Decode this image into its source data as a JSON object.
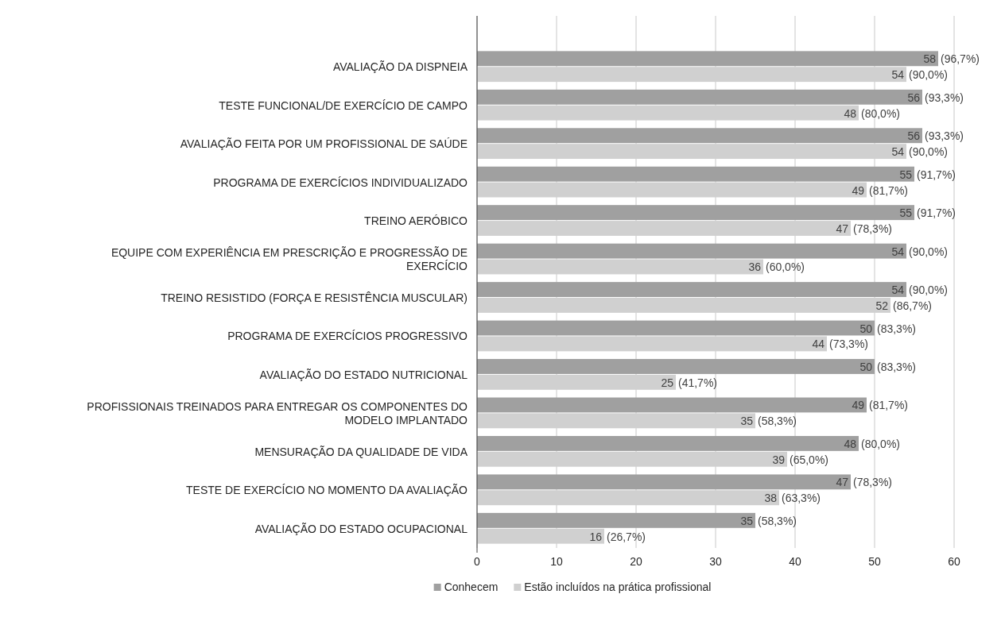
{
  "chart_data": {
    "type": "bar",
    "orientation": "horizontal",
    "categories": [
      "AVALIAÇÃO DA DISPNEIA",
      "TESTE FUNCIONAL/DE EXERCÍCIO DE CAMPO",
      "AVALIAÇÃO FEITA POR UM PROFISSIONAL DE SAÚDE",
      "PROGRAMA DE EXERCÍCIOS INDIVIDUALIZADO",
      "TREINO AERÓBICO",
      "EQUIPE COM EXPERIÊNCIA EM PRESCRIÇÃO E PROGRESSÃO DE\nEXERCÍCIO",
      "TREINO RESISTIDO (FORÇA E RESISTÊNCIA MUSCULAR)",
      "PROGRAMA DE EXERCÍCIOS PROGRESSIVO",
      "AVALIAÇÃO DO ESTADO NUTRICIONAL",
      "PROFISSIONAIS TREINADOS PARA ENTREGAR OS COMPONENTES DO\nMODELO IMPLANTADO",
      "MENSURAÇÃO DA QUALIDADE DE VIDA",
      "TESTE DE EXERCÍCIO NO MOMENTO DA AVALIAÇÃO",
      "AVALIAÇÃO DO ESTADO OCUPACIONAL"
    ],
    "series": [
      {
        "name": "Conhecem",
        "color": "#a0a0a0",
        "values": [
          58,
          56,
          56,
          55,
          55,
          54,
          54,
          50,
          50,
          49,
          48,
          47,
          35
        ],
        "value_labels": [
          "58 (96,7%)",
          "56 (93,3%)",
          "56 (93,3%)",
          "55 (91,7%)",
          "55 (91,7%)",
          "54 (90,0%)",
          "54 (90,0%)",
          "50 (83,3%)",
          "50 (83,3%)",
          "49 (81,7%)",
          "48 (80,0%)",
          "47 (78,3%)",
          "35 (58,3%)"
        ]
      },
      {
        "name": "Estão incluídos na prática profissional",
        "color": "#d0d0d0",
        "values": [
          54,
          48,
          54,
          49,
          47,
          36,
          52,
          44,
          25,
          35,
          39,
          38,
          16
        ],
        "value_labels": [
          "54 (90,0%)",
          "48 (80,0%)",
          "54 (90,0%)",
          "49 (81,7%)",
          "47 (78,3%)",
          "36 (60,0%)",
          "52 (86,7%)",
          "44 (73,3%)",
          "25 (41,7%)",
          "35 (58,3%)",
          "39 (65,0%)",
          "38 (63,3%)",
          "16 (26,7%)"
        ]
      }
    ],
    "xlim": [
      0,
      60
    ],
    "xticks": [
      0,
      10,
      20,
      30,
      40,
      50,
      60
    ],
    "grid": "x",
    "legend": "bottom"
  }
}
